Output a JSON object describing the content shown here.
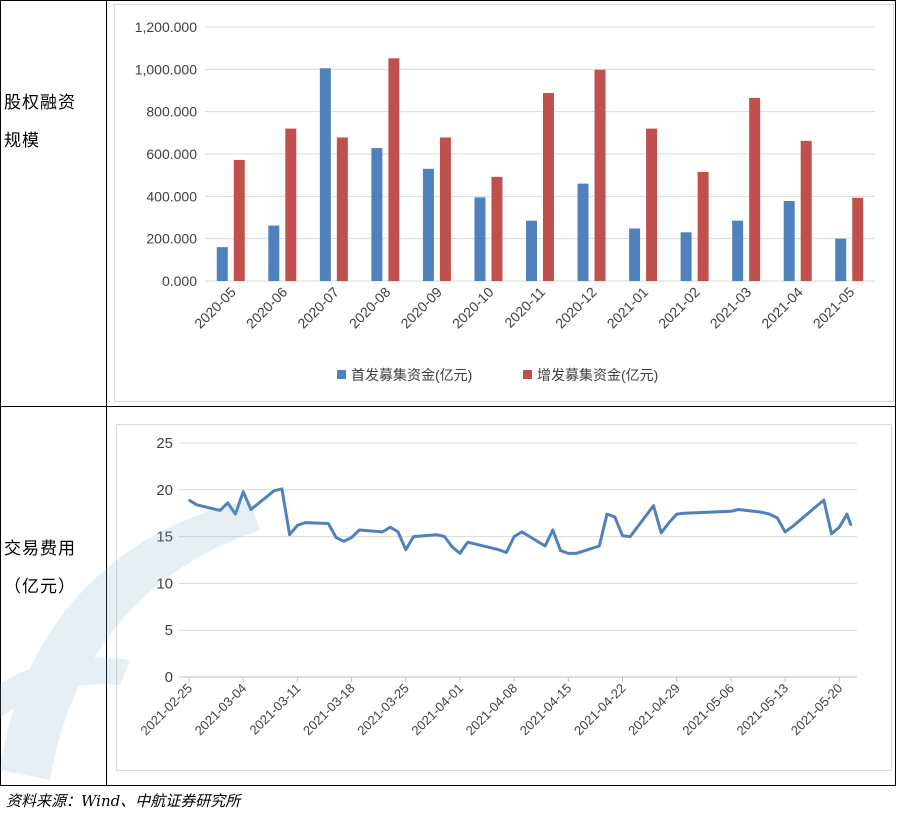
{
  "rows": [
    {
      "label_line1": "股权融资",
      "label_line2": "规模"
    },
    {
      "label_line1": "交易费用",
      "label_line2": "（亿元）"
    }
  ],
  "source_note": "资料来源：Wind、中航证券研究所",
  "colors": {
    "ipo": "#4F81BD",
    "seo": "#C0504D",
    "line": "#4F81BD",
    "grid": "#d9d9d9"
  },
  "chart_data": [
    {
      "type": "bar",
      "categories": [
        "2020-05",
        "2020-06",
        "2020-07",
        "2020-08",
        "2020-09",
        "2020-10",
        "2020-11",
        "2020-12",
        "2021-01",
        "2021-02",
        "2021-03",
        "2021-04",
        "2021-05"
      ],
      "series": [
        {
          "name": "首发募集资金(亿元)",
          "values": [
            160,
            262,
            1005,
            628,
            530,
            395,
            285,
            460,
            248,
            230,
            285,
            378,
            200
          ]
        },
        {
          "name": "增发募集资金(亿元)",
          "values": [
            572,
            720,
            678,
            1052,
            678,
            492,
            888,
            998,
            720,
            515,
            865,
            662,
            393
          ]
        }
      ],
      "ylim": [
        0,
        1200
      ],
      "yticks": [
        "0.000",
        "200.000",
        "400.000",
        "600.000",
        "800.000",
        "1,000.000",
        "1,200.000"
      ],
      "grid": true,
      "legend": "bottom"
    },
    {
      "type": "line",
      "x_tick_labels": [
        "2021-02-25",
        "2021-03-04",
        "2021-03-11",
        "2021-03-18",
        "2021-03-25",
        "2021-04-01",
        "2021-04-08",
        "2021-04-15",
        "2021-04-22",
        "2021-04-29",
        "2021-05-06",
        "2021-05-13",
        "2021-05-20"
      ],
      "x_start": "2021-02-25",
      "x_end": "2021-05-21",
      "points": [
        [
          "2021-02-25",
          18.9
        ],
        [
          "2021-02-26",
          18.4
        ],
        [
          "2021-03-01",
          17.8
        ],
        [
          "2021-03-02",
          18.6
        ],
        [
          "2021-03-03",
          17.4
        ],
        [
          "2021-03-04",
          19.8
        ],
        [
          "2021-03-05",
          17.9
        ],
        [
          "2021-03-08",
          19.9
        ],
        [
          "2021-03-09",
          20.1
        ],
        [
          "2021-03-10",
          15.2
        ],
        [
          "2021-03-11",
          16.2
        ],
        [
          "2021-03-12",
          16.5
        ],
        [
          "2021-03-15",
          16.4
        ],
        [
          "2021-03-16",
          14.9
        ],
        [
          "2021-03-17",
          14.5
        ],
        [
          "2021-03-18",
          14.9
        ],
        [
          "2021-03-19",
          15.7
        ],
        [
          "2021-03-22",
          15.5
        ],
        [
          "2021-03-23",
          16.0
        ],
        [
          "2021-03-24",
          15.5
        ],
        [
          "2021-03-25",
          13.6
        ],
        [
          "2021-03-26",
          15.0
        ],
        [
          "2021-03-29",
          15.2
        ],
        [
          "2021-03-30",
          15.0
        ],
        [
          "2021-03-31",
          13.9
        ],
        [
          "2021-04-01",
          13.2
        ],
        [
          "2021-04-02",
          14.4
        ],
        [
          "2021-04-06",
          13.6
        ],
        [
          "2021-04-07",
          13.3
        ],
        [
          "2021-04-08",
          15.0
        ],
        [
          "2021-04-09",
          15.5
        ],
        [
          "2021-04-12",
          14.0
        ],
        [
          "2021-04-13",
          15.7
        ],
        [
          "2021-04-14",
          13.5
        ],
        [
          "2021-04-15",
          13.2
        ],
        [
          "2021-04-16",
          13.2
        ],
        [
          "2021-04-19",
          14.0
        ],
        [
          "2021-04-20",
          17.4
        ],
        [
          "2021-04-21",
          17.1
        ],
        [
          "2021-04-22",
          15.1
        ],
        [
          "2021-04-23",
          15.0
        ],
        [
          "2021-04-26",
          18.3
        ],
        [
          "2021-04-27",
          15.4
        ],
        [
          "2021-04-28",
          16.5
        ],
        [
          "2021-04-29",
          17.4
        ],
        [
          "2021-04-30",
          17.5
        ],
        [
          "2021-05-06",
          17.7
        ],
        [
          "2021-05-07",
          17.9
        ],
        [
          "2021-05-10",
          17.6
        ],
        [
          "2021-05-11",
          17.4
        ],
        [
          "2021-05-12",
          17.0
        ],
        [
          "2021-05-13",
          15.5
        ],
        [
          "2021-05-14",
          16.1
        ],
        [
          "2021-05-17",
          18.2
        ],
        [
          "2021-05-18",
          18.9
        ],
        [
          "2021-05-19",
          15.3
        ],
        [
          "2021-05-20",
          16.0
        ],
        [
          "2021-05-21",
          17.4
        ],
        [
          "2021-05-21",
          16.2
        ]
      ],
      "ylim": [
        0,
        25
      ],
      "yticks": [
        "0",
        "5",
        "10",
        "15",
        "20",
        "25"
      ],
      "grid": true
    }
  ]
}
